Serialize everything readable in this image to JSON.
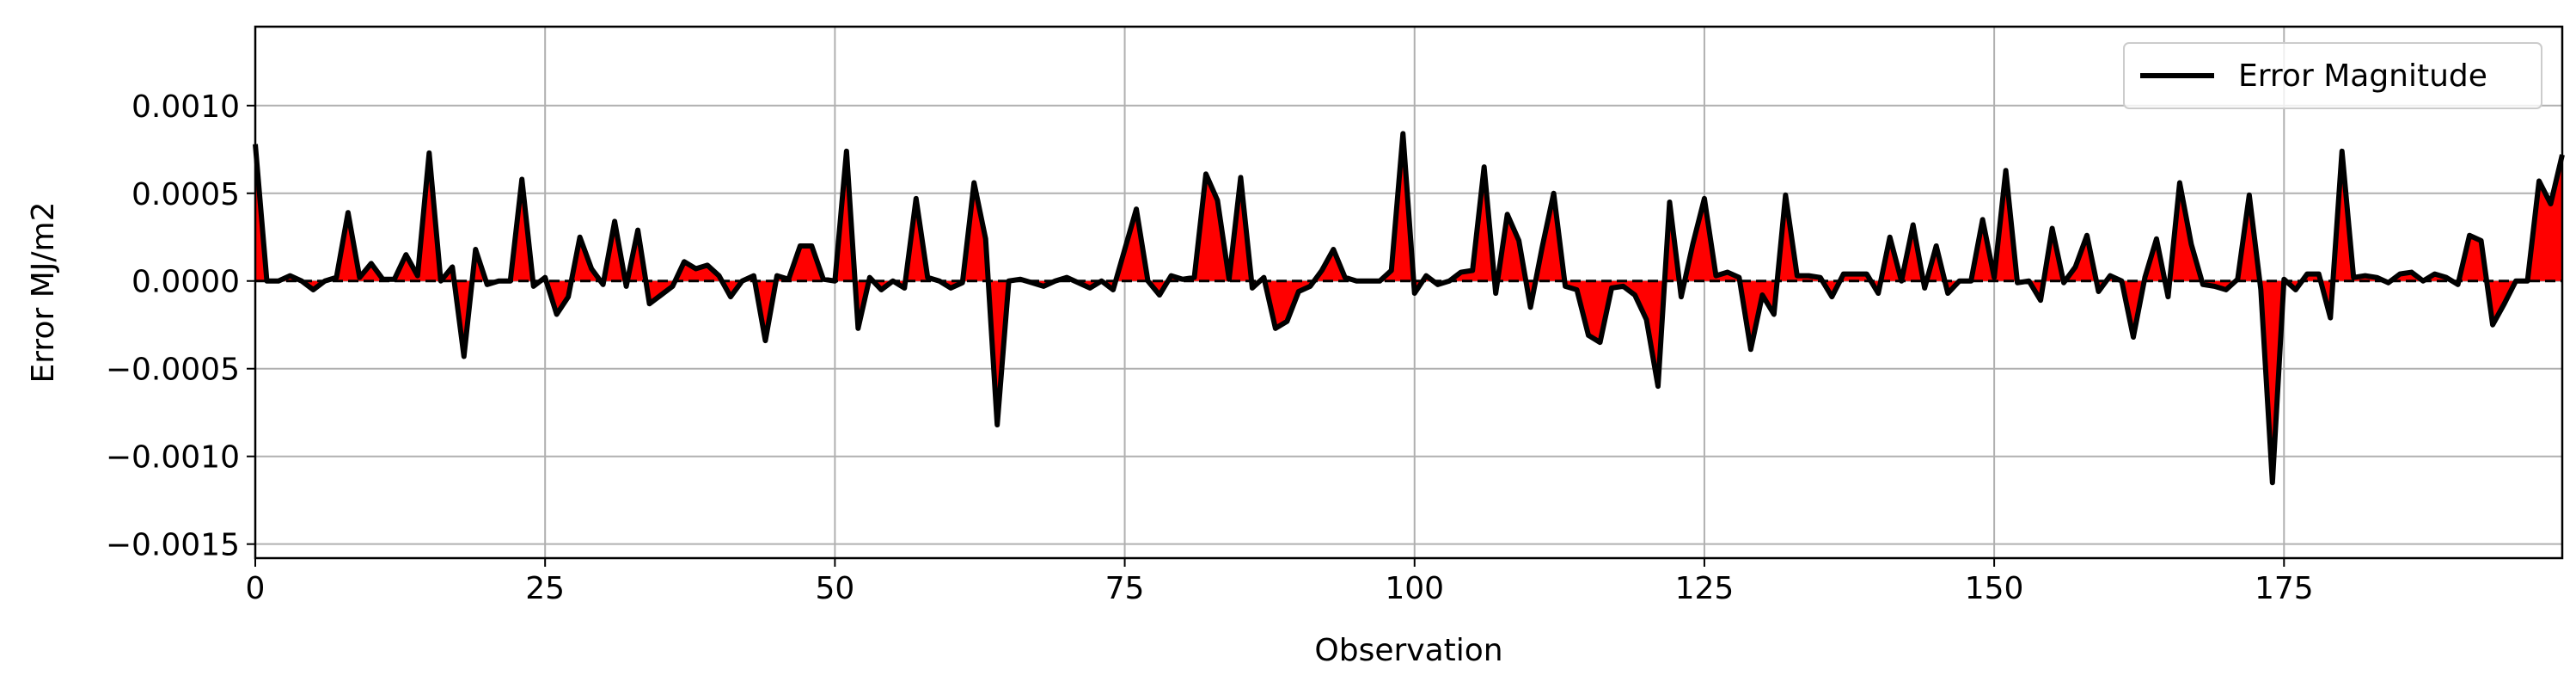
{
  "chart_data": {
    "type": "line",
    "title": "",
    "xlabel": "Observation",
    "ylabel": "Error MJ/m2",
    "xlim": [
      0,
      199
    ],
    "ylim": [
      -0.00158,
      0.00145
    ],
    "x_ticks": [
      0,
      25,
      50,
      75,
      100,
      125,
      150,
      175
    ],
    "x_tick_labels": [
      "0",
      "25",
      "50",
      "75",
      "100",
      "125",
      "150",
      "175"
    ],
    "y_ticks": [
      -0.0015,
      -0.001,
      -0.0005,
      0.0,
      0.0005,
      0.001
    ],
    "y_tick_labels": [
      "−0.0015",
      "−0.0010",
      "−0.0005",
      "0.0000",
      "0.0005",
      "0.0010"
    ],
    "grid": true,
    "legend_position": "top-right",
    "zero_line": true,
    "colors": {
      "line": "#000000",
      "fill": "#ff0000",
      "grid": "#b0b0b0",
      "zero_line": "#000000"
    },
    "series": [
      {
        "name": "Error Magnitude",
        "values": [
          0.00078,
          0.0,
          0.0,
          3e-05,
          0.0,
          -5e-05,
          0.0,
          2e-05,
          0.00039,
          2e-05,
          0.0001,
          1e-05,
          1e-05,
          0.00015,
          3e-05,
          0.00073,
          0.0,
          8e-05,
          -0.00043,
          0.00018,
          -2e-05,
          0.0,
          0.0,
          0.00058,
          -3e-05,
          2e-05,
          -0.00019,
          -9e-05,
          0.00025,
          7e-05,
          -2e-05,
          0.00034,
          -3e-05,
          0.00029,
          -0.00013,
          -8e-05,
          -3e-05,
          0.00011,
          7e-05,
          9e-05,
          3e-05,
          -9e-05,
          0.0,
          3e-05,
          -0.00034,
          3e-05,
          1e-05,
          0.0002,
          0.0002,
          1e-05,
          0.0,
          0.00074,
          -0.00027,
          2e-05,
          -5e-05,
          0.0,
          -4e-05,
          0.00047,
          2e-05,
          0.0,
          -4e-05,
          -1e-05,
          0.00056,
          0.00024,
          -0.00082,
          0.0,
          1e-05,
          -1e-05,
          -3e-05,
          0.0,
          2e-05,
          -1e-05,
          -4e-05,
          0.0,
          -5e-05,
          0.00018,
          0.00041,
          0.0,
          -8e-05,
          3e-05,
          1e-05,
          2e-05,
          0.00061,
          0.00046,
          1e-05,
          0.00059,
          -4e-05,
          2e-05,
          -0.00027,
          -0.00023,
          -6e-05,
          -3e-05,
          6e-05,
          0.00018,
          2e-05,
          0.0,
          0.0,
          0.0,
          6e-05,
          0.00084,
          -7e-05,
          3e-05,
          -2e-05,
          0.0,
          5e-05,
          6e-05,
          0.00065,
          -7e-05,
          0.00038,
          0.00023,
          -0.00015,
          0.00019,
          0.0005,
          -3e-05,
          -5e-05,
          -0.00031,
          -0.00035,
          -4e-05,
          -3e-05,
          -8e-05,
          -0.00022,
          -0.0006,
          0.00045,
          -9e-05,
          0.00021,
          0.00047,
          3e-05,
          5e-05,
          2e-05,
          -0.00039,
          -8e-05,
          -0.00019,
          0.00049,
          3e-05,
          3e-05,
          2e-05,
          -9e-05,
          4e-05,
          4e-05,
          4e-05,
          -7e-05,
          0.00025,
          0.0,
          0.00032,
          -4e-05,
          0.0002,
          -7e-05,
          0.0,
          0.0,
          0.00035,
          2e-05,
          0.00063,
          -1e-05,
          0.0,
          -0.00011,
          0.0003,
          -1e-05,
          8e-05,
          0.00026,
          -6e-05,
          3e-05,
          0.0,
          -0.00032,
          2e-05,
          0.00024,
          -9e-05,
          0.00056,
          0.00021,
          -2e-05,
          -3e-05,
          -5e-05,
          1e-05,
          0.00049,
          -5e-05,
          -0.00115,
          1e-05,
          -5e-05,
          4e-05,
          4e-05,
          -0.00021,
          0.00074,
          2e-05,
          3e-05,
          2e-05,
          -1e-05,
          4e-05,
          5e-05,
          0.0,
          4e-05,
          2e-05,
          -2e-05,
          0.00026,
          0.00023,
          -0.00025,
          -0.00013,
          0.0,
          0.0,
          0.00057,
          0.00044,
          0.00072
        ]
      }
    ]
  }
}
